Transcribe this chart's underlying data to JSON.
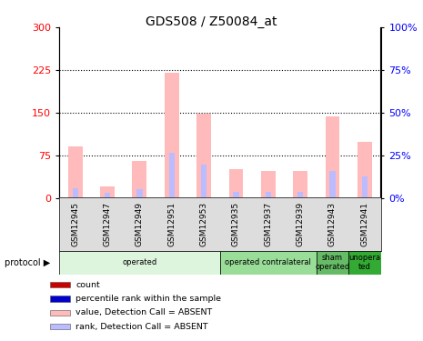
{
  "title": "GDS508 / Z50084_at",
  "samples": [
    "GSM12945",
    "GSM12947",
    "GSM12949",
    "GSM12951",
    "GSM12953",
    "GSM12935",
    "GSM12937",
    "GSM12939",
    "GSM12943",
    "GSM12941"
  ],
  "value_absent": [
    90,
    20,
    65,
    220,
    148,
    50,
    48,
    48,
    143,
    98
  ],
  "rank_absent": [
    17,
    9,
    16,
    80,
    58,
    10,
    10,
    10,
    47,
    38
  ],
  "left_ylim": [
    0,
    300
  ],
  "right_ylim": [
    0,
    100
  ],
  "left_yticks": [
    0,
    75,
    150,
    225,
    300
  ],
  "right_yticks": [
    0,
    25,
    50,
    75,
    100
  ],
  "protocol_groups": [
    {
      "label": "operated",
      "start": 0,
      "end": 5,
      "color": "#ddf5dd"
    },
    {
      "label": "operated contralateral",
      "start": 5,
      "end": 8,
      "color": "#99dd99"
    },
    {
      "label": "sham\noperated",
      "start": 8,
      "end": 9,
      "color": "#66bb66"
    },
    {
      "label": "unopera\nted",
      "start": 9,
      "end": 10,
      "color": "#33aa33"
    }
  ],
  "color_value_absent": "#ffbbbb",
  "color_rank_absent": "#bbbbff",
  "color_count": "#cc0000",
  "color_percentile": "#0000cc",
  "background_color": "#ffffff",
  "legend_items": [
    {
      "color": "#cc0000",
      "label": "count"
    },
    {
      "color": "#0000cc",
      "label": "percentile rank within the sample"
    },
    {
      "color": "#ffbbbb",
      "label": "value, Detection Call = ABSENT"
    },
    {
      "color": "#bbbbff",
      "label": "rank, Detection Call = ABSENT"
    }
  ]
}
